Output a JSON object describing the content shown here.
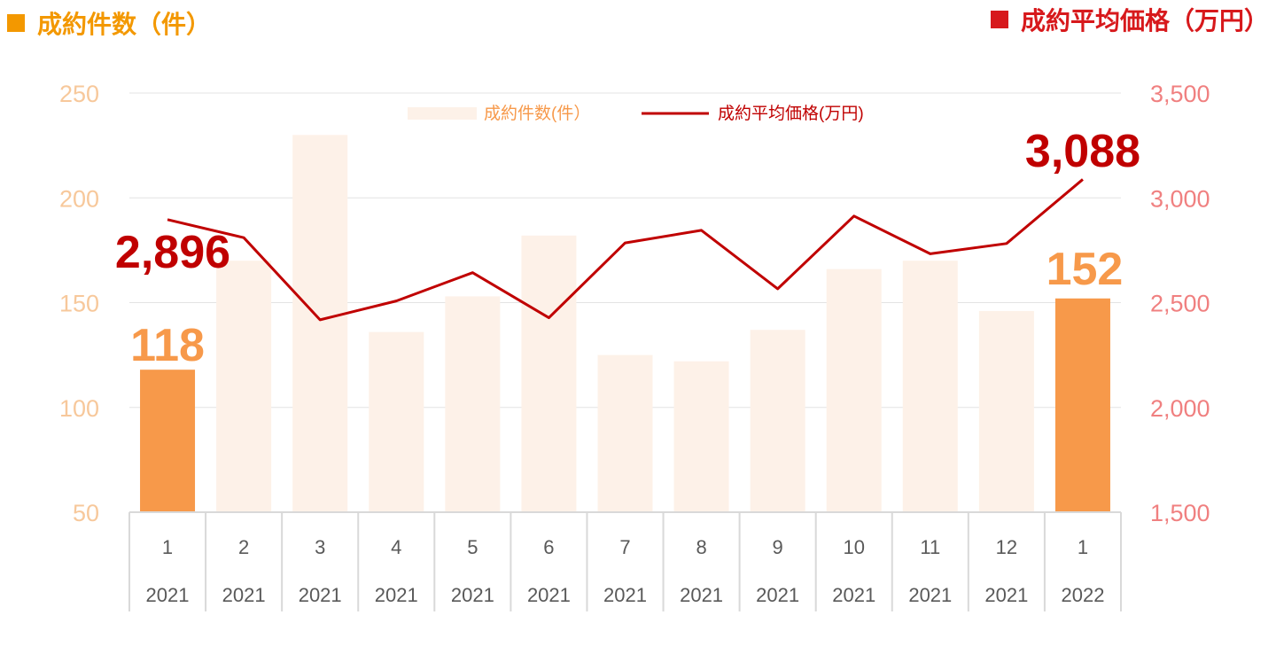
{
  "header": {
    "left_title": "成約件数（件）",
    "right_title": "成約平均価格（万円）",
    "left_color": "#f39800",
    "right_color": "#d7191c"
  },
  "chart_data": {
    "type": "bar",
    "categories": [
      "1",
      "2",
      "3",
      "4",
      "5",
      "6",
      "7",
      "8",
      "9",
      "10",
      "11",
      "12",
      "1"
    ],
    "years": [
      "2021",
      "2021",
      "2021",
      "2021",
      "2021",
      "2021",
      "2021",
      "2021",
      "2021",
      "2021",
      "2021",
      "2021",
      "2022"
    ],
    "series": [
      {
        "name": "成約件数(件）",
        "type": "bar",
        "axis": "left",
        "values": [
          118,
          170,
          230,
          136,
          153,
          182,
          125,
          122,
          137,
          166,
          170,
          146,
          152
        ],
        "color": "#fdf1e8",
        "highlight_color": "#f7994a",
        "highlight_indices": [
          0,
          12
        ]
      },
      {
        "name": "成約平均価格(万円)",
        "type": "line",
        "axis": "right",
        "values": [
          2896,
          2810,
          2418,
          2508,
          2643,
          2428,
          2785,
          2845,
          2566,
          2913,
          2733,
          2782,
          3088
        ],
        "color": "#c00000"
      }
    ],
    "y_left": {
      "ylim": [
        50,
        250
      ],
      "ticks": [
        "250",
        "200",
        "150",
        "100",
        "50"
      ],
      "color": "#f7c89b"
    },
    "y_right": {
      "ylim": [
        1500,
        3500
      ],
      "ticks": [
        "3,500",
        "3,000",
        "2,500",
        "2,000",
        "1,500"
      ],
      "color": "#f08080"
    },
    "annotations": {
      "first_bar": "118",
      "last_bar": "152",
      "first_price": "2,896",
      "last_price": "3,088"
    },
    "grid": true,
    "legend_position": "top-center"
  }
}
